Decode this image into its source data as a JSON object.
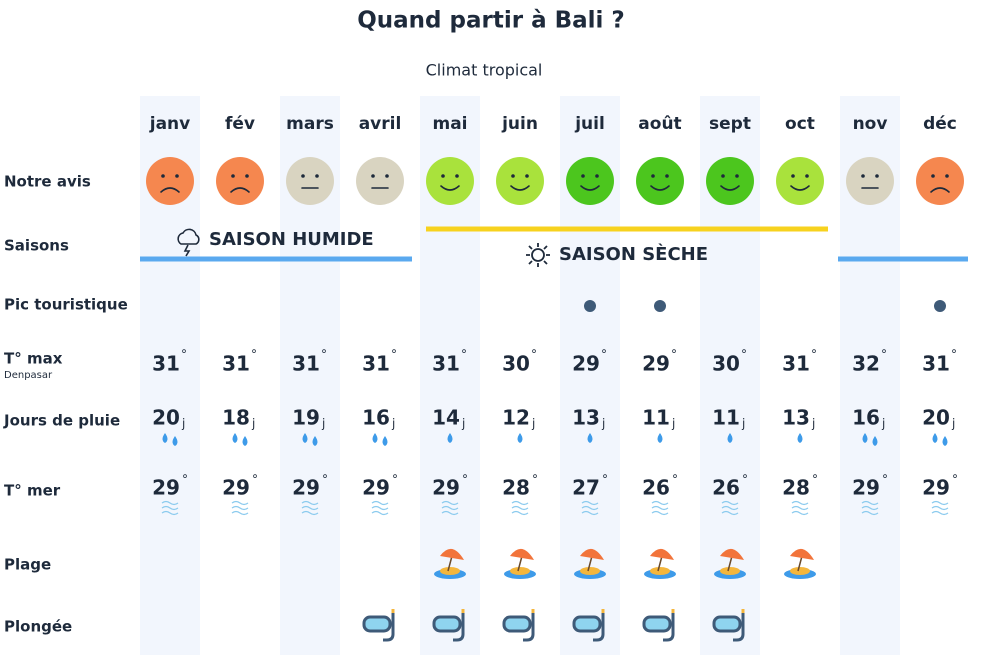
{
  "header": {
    "title": "Quand partir à Bali ?",
    "subtitle": "Climat tropical"
  },
  "months": [
    "janv",
    "fév",
    "mars",
    "avril",
    "mai",
    "juin",
    "juil",
    "août",
    "sept",
    "oct",
    "nov",
    "déc"
  ],
  "row_labels": {
    "avis": "Notre avis",
    "saisons": "Saisons",
    "pic": "Pic touristique",
    "tmax": "T° max",
    "tmax_place": "Denpasar",
    "pluie": "Jours de pluie",
    "mer": "T° mer",
    "plage": "Plage",
    "plongee": "Plongée"
  },
  "seasons": {
    "humide": "SAISON HUMIDE",
    "seche": "SAISON SÈCHE"
  },
  "units": {
    "temp": "°",
    "rain": "j"
  },
  "tmax": [
    31,
    31,
    31,
    31,
    31,
    30,
    29,
    29,
    30,
    31,
    32,
    31
  ],
  "rain_days": [
    20,
    18,
    19,
    16,
    14,
    12,
    13,
    11,
    11,
    13,
    16,
    20
  ],
  "sea_temp": [
    29,
    29,
    29,
    29,
    29,
    28,
    27,
    26,
    26,
    28,
    29,
    29
  ],
  "avis_colors": [
    "#f5874f",
    "#f5874f",
    "#d9d4c1",
    "#d9d4c1",
    "#a9e23c",
    "#a9e23c",
    "#4cc61e",
    "#4cc61e",
    "#4cc61e",
    "#a9e23c",
    "#d9d4c1",
    "#f5874f"
  ]
}
